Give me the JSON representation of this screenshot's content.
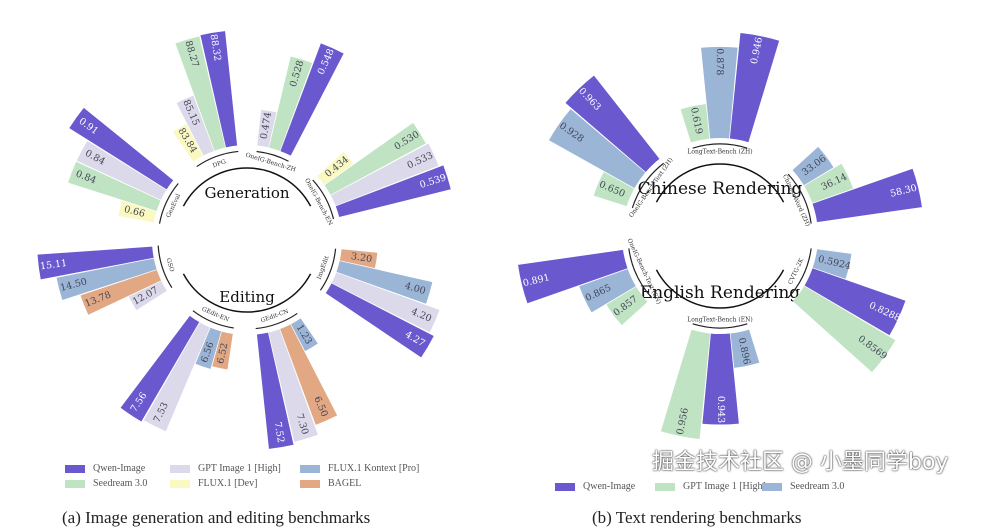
{
  "colors": {
    "Qwen-Image": "#6a58cf",
    "GPT Image 1 [High]": "#dcd9ea",
    "FLUX.1 Kontext [Pro]": "#9bb5d7",
    "Seedream 3.0": "#bfe3c3",
    "FLUX.1 [Dev]": "#fbf9c2",
    "BAGEL": "#e2a783"
  },
  "chart_data": [
    {
      "type": "radial-bar",
      "title": "(a) Image generation and editing benchmarks",
      "center_labels": [
        "Generation",
        "Editing"
      ],
      "legend": [
        "Qwen-Image",
        "GPT Image 1 [High]",
        "FLUX.1 Kontext [Pro]",
        "Seedream 3.0",
        "FLUX.1 [Dev]",
        "BAGEL"
      ],
      "groups": [
        {
          "name": "DPG",
          "bars": [
            {
              "model": "FLUX.1 [Dev]",
              "value": "83.84"
            },
            {
              "model": "GPT Image 1 [High]",
              "value": "85.15"
            },
            {
              "model": "Seedream 3.0",
              "value": "88.27"
            },
            {
              "model": "Qwen-Image",
              "value": "88.32"
            }
          ]
        },
        {
          "name": "OneIG-Bench-ZH",
          "bars": [
            {
              "model": "GPT Image 1 [High]",
              "value": "0.474"
            },
            {
              "model": "Seedream 3.0",
              "value": "0.528"
            },
            {
              "model": "Qwen-Image",
              "value": "0.548"
            }
          ]
        },
        {
          "name": "OneIG-Bench-EN",
          "bars": [
            {
              "model": "FLUX.1 [Dev]",
              "value": "0.434"
            },
            {
              "model": "Seedream 3.0",
              "value": "0.530"
            },
            {
              "model": "GPT Image 1 [High]",
              "value": "0.533"
            },
            {
              "model": "Qwen-Image",
              "value": "0.539"
            }
          ]
        },
        {
          "name": "ImgEdit",
          "bars": [
            {
              "model": "BAGEL",
              "value": "3.20"
            },
            {
              "model": "FLUX.1 Kontext [Pro]",
              "value": "4.00"
            },
            {
              "model": "GPT Image 1 [High]",
              "value": "4.20"
            },
            {
              "model": "Qwen-Image",
              "value": "4.27"
            }
          ]
        },
        {
          "name": "GEdit-CN",
          "bars": [
            {
              "model": "FLUX.1 Kontext [Pro]",
              "value": "1.23"
            },
            {
              "model": "BAGEL",
              "value": "6.50"
            },
            {
              "model": "GPT Image 1 [High]",
              "value": "7.30"
            },
            {
              "model": "Qwen-Image",
              "value": "7.52"
            }
          ]
        },
        {
          "name": "GEdit-EN",
          "bars": [
            {
              "model": "BAGEL",
              "value": "6.52"
            },
            {
              "model": "FLUX.1 Kontext [Pro]",
              "value": "6.56"
            },
            {
              "model": "GPT Image 1 [High]",
              "value": "7.53"
            },
            {
              "model": "Qwen-Image",
              "value": "7.56"
            }
          ]
        },
        {
          "name": "GSO",
          "bars": [
            {
              "model": "GPT Image 1 [High]",
              "value": "12.07"
            },
            {
              "model": "BAGEL",
              "value": "13.78"
            },
            {
              "model": "FLUX.1 Kontext [Pro]",
              "value": "14.50"
            },
            {
              "model": "Qwen-Image",
              "value": "15.11"
            }
          ]
        },
        {
          "name": "GenEval",
          "bars": [
            {
              "model": "FLUX.1 [Dev]",
              "value": "0.66"
            },
            {
              "model": "Seedream 3.0",
              "value": "0.84"
            },
            {
              "model": "GPT Image 1 [High]",
              "value": "0.84"
            },
            {
              "model": "Qwen-Image",
              "value": "0.91"
            }
          ]
        }
      ]
    },
    {
      "type": "radial-bar",
      "title": "(b) Text rendering benchmarks",
      "center_labels": [
        "Chinese Rendering",
        "English Rendering"
      ],
      "legend": [
        "Qwen-Image",
        "GPT Image 1 [High]",
        "Seedream 3.0"
      ],
      "legend_colors": [
        "#6a58cf",
        "#bfe3c3",
        "#9bb5d7"
      ],
      "groups": [
        {
          "name": "LongText-Bench (ZH)",
          "bars": [
            {
              "model": "GPT Image 1 [High]",
              "value": "0.619"
            },
            {
              "model": "Seedream 3.0",
              "value": "0.878"
            },
            {
              "model": "Qwen-Image",
              "value": "0.946"
            }
          ]
        },
        {
          "name": "ChineseWord (ZH)",
          "bars": [
            {
              "model": "Seedream 3.0",
              "value": "33.06"
            },
            {
              "model": "GPT Image 1 [High]",
              "value": "36.14"
            },
            {
              "model": "Qwen-Image",
              "value": "58.30"
            }
          ]
        },
        {
          "name": "CVTG-2K",
          "bars": [
            {
              "model": "Seedream 3.0",
              "value": "0.5924"
            },
            {
              "model": "Qwen-Image",
              "value": "0.8288"
            },
            {
              "model": "GPT Image 1 [High]",
              "value": "0.8569"
            }
          ]
        },
        {
          "name": "LongText-Bench (EN)",
          "bars": [
            {
              "model": "Seedream 3.0",
              "value": "0.896"
            },
            {
              "model": "Qwen-Image",
              "value": "0.943"
            },
            {
              "model": "GPT Image 1 [High]",
              "value": "0.956"
            }
          ]
        },
        {
          "name": "OneIG-Bench-Text (EN)",
          "bars": [
            {
              "model": "GPT Image 1 [High]",
              "value": "0.857"
            },
            {
              "model": "Seedream 3.0",
              "value": "0.865"
            },
            {
              "model": "Qwen-Image",
              "value": "0.891"
            }
          ]
        },
        {
          "name": "OneIG-Bench-Text (ZH)",
          "bars": [
            {
              "model": "GPT Image 1 [High]",
              "value": "0.650"
            },
            {
              "model": "Seedream 3.0",
              "value": "0.928"
            },
            {
              "model": "Qwen-Image",
              "value": "0.963"
            }
          ]
        }
      ]
    }
  ],
  "watermark": "掘金技术社区 @ 小墨同学boy"
}
